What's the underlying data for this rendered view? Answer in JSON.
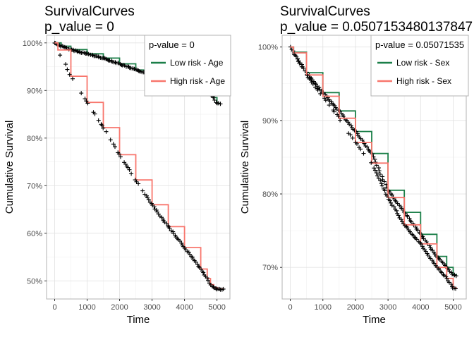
{
  "chart_data": [
    {
      "type": "line",
      "chart_kind": "kaplan-meier survival curves",
      "title": "SurvivalCurves",
      "subtitle": "p_value = 0",
      "xlabel": "Time",
      "ylabel": "Cumulative Survival",
      "xlim": [
        -250,
        5400
      ],
      "ylim": [
        46.2,
        101.6
      ],
      "x_ticks": [
        0,
        1000,
        2000,
        3000,
        4000,
        5000
      ],
      "y_ticks": [
        50,
        60,
        70,
        80,
        90,
        100
      ],
      "y_tick_labels": [
        "50%",
        "60%",
        "70%",
        "80%",
        "90%",
        "100%"
      ],
      "grid": true,
      "legend": {
        "title": "p-value = 0",
        "placement": "top-right",
        "entries": [
          "Low risk - Age",
          "High risk - Age"
        ]
      },
      "series": [
        {
          "name": "Low risk - Age",
          "color": "#1b7f48",
          "x": [
            0,
            200,
            500,
            1000,
            1500,
            2000,
            2500,
            3000,
            3500,
            4000,
            4500,
            4700,
            4900,
            5000,
            5100
          ],
          "y": [
            100,
            99.3,
            98.6,
            97.7,
            96.8,
            95.6,
            94.3,
            93.4,
            92.8,
            91.8,
            90.9,
            89.9,
            88.5,
            87.3,
            87.2
          ]
        },
        {
          "name": "High risk - Age",
          "color": "#f8766d",
          "x": [
            0,
            100,
            500,
            1000,
            1500,
            2000,
            2500,
            3000,
            3500,
            4000,
            4500,
            4700,
            4800,
            4900,
            5000,
            5200
          ],
          "y": [
            100,
            98.5,
            93,
            87.5,
            82.2,
            76.5,
            71.2,
            66,
            61.4,
            57,
            52.5,
            50.5,
            49.2,
            48.6,
            48.3,
            48.2
          ]
        }
      ]
    },
    {
      "type": "line",
      "chart_kind": "kaplan-meier survival curves",
      "title": "SurvivalCurves",
      "subtitle": "p_value = 0.0507153480137847",
      "xlabel": "Time",
      "ylabel": "Cumulative Survival",
      "xlim": [
        -250,
        5400
      ],
      "ylim": [
        65.7,
        101.6
      ],
      "x_ticks": [
        0,
        1000,
        2000,
        3000,
        4000,
        5000
      ],
      "y_ticks": [
        70,
        80,
        90,
        100
      ],
      "y_tick_labels": [
        "70%",
        "80%",
        "90%",
        "100%"
      ],
      "grid": true,
      "legend": {
        "title": "p-value = 0.05071535",
        "placement": "top-right",
        "entries": [
          "Low risk - Sex",
          "High risk - Sex"
        ]
      },
      "series": [
        {
          "name": "Low risk - Sex",
          "color": "#1b7f48",
          "x": [
            0,
            100,
            500,
            1000,
            1500,
            2000,
            2500,
            3000,
            3500,
            4000,
            4500,
            4800,
            5000,
            5100
          ],
          "y": [
            100,
            99.3,
            96.5,
            93.8,
            91.3,
            88.5,
            85.5,
            80.5,
            77.5,
            74.5,
            71.5,
            70,
            69,
            68.9
          ]
        },
        {
          "name": "High risk - Sex",
          "color": "#f8766d",
          "x": [
            0,
            100,
            500,
            1000,
            1500,
            2000,
            2500,
            3000,
            3500,
            4000,
            4500,
            4800,
            5000,
            5100
          ],
          "y": [
            100,
            99.2,
            96.2,
            93.3,
            90.3,
            87,
            84.2,
            79.5,
            75.8,
            73.2,
            70,
            68.5,
            67.2,
            67.1
          ]
        }
      ]
    }
  ]
}
